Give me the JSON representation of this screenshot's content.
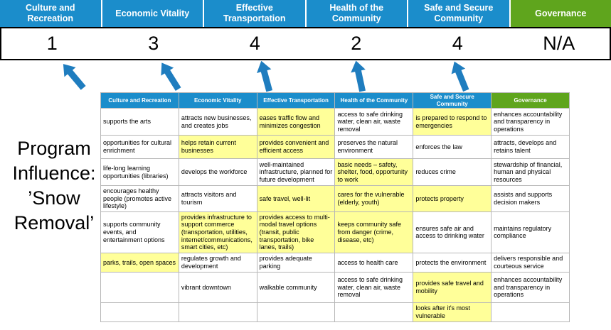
{
  "title": "Program Influence: ’Snow Removal’",
  "colors": {
    "header_blue": "#1b8dcb",
    "header_green": "#5fa51d",
    "highlight_yellow": "#ffff99",
    "arrow_blue": "#1f7dbf",
    "score_text": "#000000"
  },
  "summary": {
    "columns": [
      {
        "label": "Culture and Recreation",
        "score": "1",
        "theme": "blue"
      },
      {
        "label": "Economic Vitality",
        "score": "3",
        "theme": "blue"
      },
      {
        "label": "Effective Transportation",
        "score": "4",
        "theme": "blue"
      },
      {
        "label": "Health of the Community",
        "score": "2",
        "theme": "blue"
      },
      {
        "label": "Safe and Secure Community",
        "score": "4",
        "theme": "blue"
      },
      {
        "label": "Governance",
        "score": "N/A",
        "theme": "green"
      }
    ]
  },
  "matrix": {
    "headers": [
      {
        "label": "Culture and Recreation",
        "theme": "blue"
      },
      {
        "label": "Economic Vitality",
        "theme": "blue"
      },
      {
        "label": "Effective Transportation",
        "theme": "blue"
      },
      {
        "label": "Health of the Community",
        "theme": "blue"
      },
      {
        "label": "Safe and Secure Community",
        "theme": "blue"
      },
      {
        "label": "Governance",
        "theme": "green"
      }
    ],
    "rows": [
      [
        {
          "text": "supports the arts",
          "highlight": false
        },
        {
          "text": "attracts new businesses, and creates jobs",
          "highlight": false
        },
        {
          "text": "eases traffic flow and minimizes congestion",
          "highlight": true
        },
        {
          "text": "access to safe drinking water, clean air, waste removal",
          "highlight": false
        },
        {
          "text": "is prepared to respond to emergencies",
          "highlight": true
        },
        {
          "text": "enhances accountability and transparency in operations",
          "highlight": false
        }
      ],
      [
        {
          "text": "opportunities for cultural enrichment",
          "highlight": false
        },
        {
          "text": "helps retain current businesses",
          "highlight": true
        },
        {
          "text": "provides convenient and efficient access",
          "highlight": true
        },
        {
          "text": "preserves the natural environment",
          "highlight": false
        },
        {
          "text": "enforces the law",
          "highlight": false
        },
        {
          "text": "attracts, develops and retains talent",
          "highlight": false
        }
      ],
      [
        {
          "text": "life-long learning opportunities (libraries)",
          "highlight": false
        },
        {
          "text": "develops the workforce",
          "highlight": false
        },
        {
          "text": "well-maintained infrastructure, planned for future development",
          "highlight": false
        },
        {
          "text": "basic needs – safety, shelter, food, opportunity to work",
          "highlight": true
        },
        {
          "text": "reduces crime",
          "highlight": false
        },
        {
          "text": "stewardship of financial, human and physical resources",
          "highlight": false
        }
      ],
      [
        {
          "text": "encourages healthy people (promotes active lifestyle)",
          "highlight": false
        },
        {
          "text": "attracts visitors and tourism",
          "highlight": false
        },
        {
          "text": "safe travel, well-lit",
          "highlight": true
        },
        {
          "text": "cares for the vulnerable (elderly, youth)",
          "highlight": true
        },
        {
          "text": "protects property",
          "highlight": true
        },
        {
          "text": "assists and supports decision makers",
          "highlight": false
        }
      ],
      [
        {
          "text": "supports community events, and entertainment options",
          "highlight": false
        },
        {
          "text": "provides infrastructure to support commerce (transportation, utilities, internet/communications, smart cities, etc)",
          "highlight": true
        },
        {
          "text": "provides access to multi-modal travel options (transit, public transportation, bike lanes, trails)",
          "highlight": true
        },
        {
          "text": "keeps community safe from danger (crime, disease, etc)",
          "highlight": true
        },
        {
          "text": "ensures safe air and access to drinking water",
          "highlight": false
        },
        {
          "text": "maintains regulatory compliance",
          "highlight": false
        }
      ],
      [
        {
          "text": "parks, trails, open spaces",
          "highlight": true
        },
        {
          "text": "regulates growth and development",
          "highlight": false
        },
        {
          "text": "provides adequate parking",
          "highlight": false
        },
        {
          "text": "access to health care",
          "highlight": false
        },
        {
          "text": "protects the environment",
          "highlight": false
        },
        {
          "text": "delivers responsible and courteous service",
          "highlight": false
        }
      ],
      [
        {
          "text": "",
          "highlight": false
        },
        {
          "text": "vibrant downtown",
          "highlight": false
        },
        {
          "text": "walkable community",
          "highlight": false
        },
        {
          "text": "access to safe drinking water, clean air, waste removal",
          "highlight": false
        },
        {
          "text": "provides safe travel and mobility",
          "highlight": true
        },
        {
          "text": "enhances accountability and transparency in operations",
          "highlight": false
        }
      ],
      [
        {
          "text": "",
          "highlight": false
        },
        {
          "text": "",
          "highlight": false
        },
        {
          "text": "",
          "highlight": false
        },
        {
          "text": "",
          "highlight": false
        },
        {
          "text": "looks after it's most vulnerable",
          "highlight": true
        },
        {
          "text": "",
          "highlight": false
        }
      ]
    ]
  }
}
